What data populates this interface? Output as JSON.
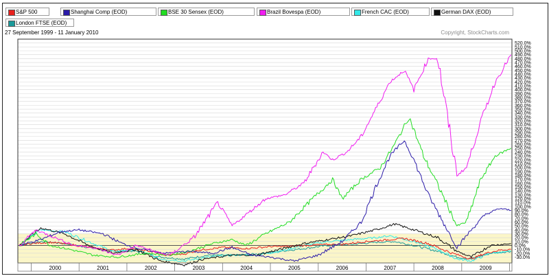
{
  "chart_data": {
    "type": "line",
    "title": "",
    "date_range": "27 September 1999 - 11 January 2010",
    "copyright": "Copyright, StockCharts.com",
    "xlabel": "",
    "ylabel": "",
    "x_ticks": [
      "2000",
      "2001",
      "2002",
      "2003",
      "2004",
      "2005",
      "2006",
      "2007",
      "2008",
      "2009"
    ],
    "y_ticks": [
      "520.0%",
      "510.0%",
      "500.0%",
      "490.0%",
      "480.0%",
      "470.0%",
      "460.0%",
      "450.0%",
      "440.0%",
      "430.0%",
      "420.0%",
      "410.0%",
      "400.0%",
      "390.0%",
      "380.0%",
      "370.0%",
      "360.0%",
      "350.0%",
      "340.0%",
      "330.0%",
      "320.0%",
      "310.0%",
      "300.0%",
      "290.0%",
      "280.0%",
      "270.0%",
      "260.0%",
      "250.0%",
      "240.0%",
      "230.0%",
      "220.0%",
      "210.0%",
      "200.0%",
      "190.0%",
      "180.0%",
      "170.0%",
      "160.0%",
      "150.0%",
      "140.0%",
      "130.0%",
      "120.0%",
      "110.0%",
      "100.0%",
      "90.0%",
      "80.0%",
      "70.0%",
      "60.0%",
      "50.0%",
      "40.0%",
      "30.0%",
      "20.0%",
      "10.0%",
      "0.0%",
      "-10.0%",
      "-20.0%",
      "-30.0%"
    ],
    "ylim": [
      -45,
      530
    ],
    "grid": true,
    "legend_placement": "top",
    "x_unit": "year",
    "series": [
      {
        "name": "S&P 500",
        "color": "#e8211d",
        "x": [
          1999.75,
          2000.0,
          2000.4,
          2000.8,
          2001.2,
          2001.7,
          2002.0,
          2002.5,
          2002.8,
          2003.2,
          2003.5,
          2004.0,
          2004.5,
          2005.0,
          2005.5,
          2006.0,
          2006.5,
          2007.0,
          2007.5,
          2007.8,
          2008.3,
          2008.8,
          2009.2,
          2009.5,
          2009.8,
          2010.03
        ],
        "values": [
          0,
          5,
          8,
          3,
          -5,
          -12,
          -8,
          -15,
          -25,
          -22,
          -12,
          -5,
          -8,
          -3,
          -2,
          2,
          3,
          10,
          15,
          18,
          5,
          -20,
          -35,
          -20,
          -12,
          -10
        ]
      },
      {
        "name": "Shanghai Comp (EOD)",
        "color": "#2a1aa8",
        "x": [
          1999.75,
          2000.2,
          2000.6,
          2001.0,
          2001.5,
          2001.9,
          2002.3,
          2002.8,
          2003.3,
          2003.8,
          2004.2,
          2004.6,
          2005.0,
          2005.5,
          2006.0,
          2006.5,
          2006.9,
          2007.2,
          2007.5,
          2007.8,
          2008.0,
          2008.3,
          2008.7,
          2008.9,
          2009.2,
          2009.5,
          2009.8,
          2010.03
        ],
        "values": [
          0,
          15,
          35,
          40,
          30,
          5,
          -10,
          -20,
          -15,
          -20,
          -5,
          -25,
          -30,
          -40,
          -25,
          10,
          60,
          150,
          230,
          270,
          220,
          130,
          40,
          -5,
          40,
          80,
          95,
          90
        ]
      },
      {
        "name": "BSE 30 Sensex (EOD)",
        "color": "#22dd22",
        "x": [
          1999.75,
          2000.1,
          2000.4,
          2000.8,
          2001.3,
          2001.8,
          2002.4,
          2002.9,
          2003.3,
          2003.8,
          2004.2,
          2004.5,
          2004.9,
          2005.4,
          2005.8,
          2006.3,
          2006.5,
          2006.9,
          2007.3,
          2007.6,
          2007.9,
          2008.2,
          2008.6,
          2008.9,
          2009.1,
          2009.4,
          2009.7,
          2010.03
        ],
        "values": [
          0,
          30,
          0,
          -10,
          -25,
          -30,
          -20,
          -25,
          -15,
          5,
          15,
          0,
          30,
          60,
          110,
          170,
          120,
          170,
          200,
          260,
          330,
          230,
          130,
          50,
          60,
          170,
          230,
          250
        ]
      },
      {
        "name": "Brazil Bovespa (EOD)",
        "color": "#f01cf0",
        "x": [
          1999.75,
          2000.1,
          2000.5,
          2000.9,
          2001.3,
          2001.8,
          2002.2,
          2002.7,
          2002.9,
          2003.4,
          2003.9,
          2004.2,
          2004.5,
          2004.9,
          2005.3,
          2005.7,
          2006.1,
          2006.3,
          2006.6,
          2006.9,
          2007.2,
          2007.5,
          2007.8,
          2008.0,
          2008.3,
          2008.5,
          2008.9,
          2009.1,
          2009.4,
          2009.7,
          2010.03
        ],
        "values": [
          0,
          40,
          20,
          0,
          -5,
          -25,
          0,
          -20,
          -25,
          20,
          110,
          50,
          80,
          120,
          130,
          160,
          240,
          220,
          240,
          280,
          350,
          420,
          450,
          400,
          480,
          480,
          180,
          200,
          320,
          420,
          490
        ]
      },
      {
        "name": "French CAC (EOD)",
        "color": "#33e8e8",
        "x": [
          1999.75,
          2000.2,
          2000.7,
          2001.2,
          2001.7,
          2002.2,
          2002.7,
          2003.2,
          2003.7,
          2004.2,
          2004.7,
          2005.2,
          2005.7,
          2006.2,
          2006.7,
          2007.2,
          2007.5,
          2008.0,
          2008.5,
          2008.9,
          2009.2,
          2009.6,
          2010.03
        ],
        "values": [
          0,
          40,
          35,
          10,
          -15,
          -10,
          -35,
          -40,
          -30,
          -25,
          -25,
          -15,
          0,
          10,
          15,
          20,
          25,
          10,
          -10,
          -35,
          -40,
          -20,
          -15
        ]
      },
      {
        "name": "German DAX (EOD)",
        "color": "#111111",
        "x": [
          1999.75,
          2000.2,
          2000.7,
          2001.2,
          2001.7,
          2002.2,
          2002.7,
          2003.2,
          2003.6,
          2004.2,
          2004.7,
          2005.2,
          2005.7,
          2006.2,
          2006.7,
          2007.2,
          2007.6,
          2008.0,
          2008.5,
          2008.9,
          2009.2,
          2009.6,
          2010.03
        ],
        "values": [
          0,
          45,
          30,
          0,
          -20,
          -10,
          -40,
          -50,
          -35,
          -25,
          -25,
          -10,
          5,
          15,
          25,
          40,
          55,
          40,
          20,
          -15,
          -30,
          0,
          5
        ]
      },
      {
        "name": "London FTSE (EOD)",
        "color": "#1a9a9a",
        "x": [
          1999.75,
          2000.2,
          2000.7,
          2001.2,
          2001.7,
          2002.2,
          2002.7,
          2003.2,
          2003.7,
          2004.2,
          2004.7,
          2005.2,
          2005.7,
          2006.2,
          2006.7,
          2007.2,
          2007.6,
          2008.0,
          2008.5,
          2008.9,
          2009.2,
          2009.6,
          2010.03
        ],
        "values": [
          0,
          10,
          5,
          -5,
          -15,
          -15,
          -30,
          -35,
          -25,
          -25,
          -22,
          -15,
          -8,
          0,
          3,
          8,
          10,
          0,
          -15,
          -30,
          -35,
          -20,
          -15
        ]
      }
    ]
  }
}
